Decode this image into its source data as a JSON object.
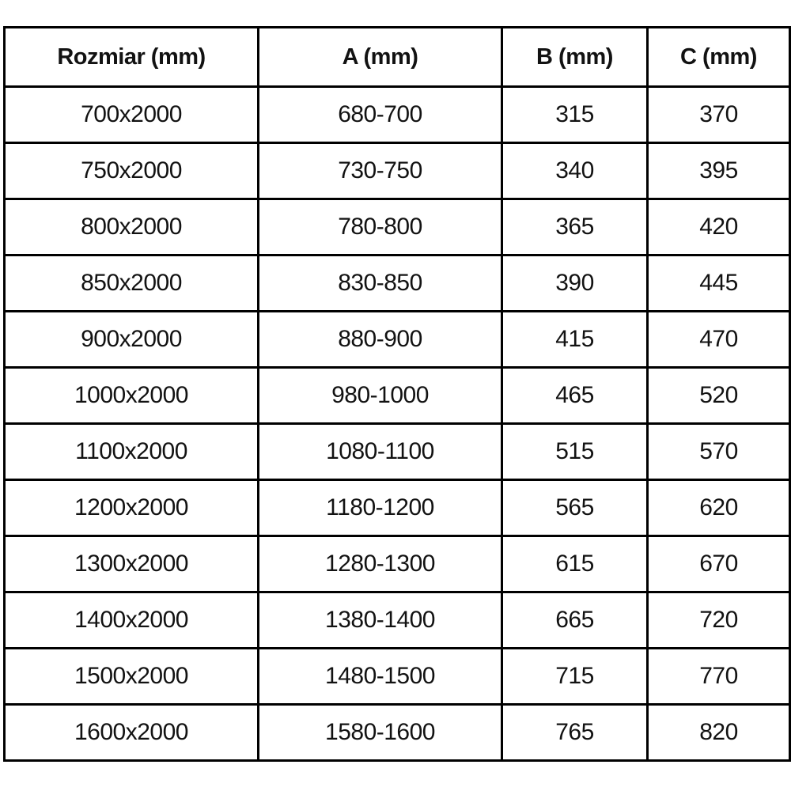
{
  "table": {
    "columns": [
      "Rozmiar (mm)",
      "A (mm)",
      "B (mm)",
      "C (mm)"
    ],
    "rows": [
      [
        "700x2000",
        "680-700",
        "315",
        "370"
      ],
      [
        "750x2000",
        "730-750",
        "340",
        "395"
      ],
      [
        "800x2000",
        "780-800",
        "365",
        "420"
      ],
      [
        "850x2000",
        "830-850",
        "390",
        "445"
      ],
      [
        "900x2000",
        "880-900",
        "415",
        "470"
      ],
      [
        "1000x2000",
        "980-1000",
        "465",
        "520"
      ],
      [
        "1100x2000",
        "1080-1100",
        "515",
        "570"
      ],
      [
        "1200x2000",
        "1180-1200",
        "565",
        "620"
      ],
      [
        "1300x2000",
        "1280-1300",
        "615",
        "670"
      ],
      [
        "1400x2000",
        "1380-1400",
        "665",
        "720"
      ],
      [
        "1500x2000",
        "1480-1500",
        "715",
        "770"
      ],
      [
        "1600x2000",
        "1580-1600",
        "765",
        "820"
      ]
    ],
    "colors": {
      "border": "#000000",
      "text": "#121212",
      "background": "#ffffff"
    }
  }
}
